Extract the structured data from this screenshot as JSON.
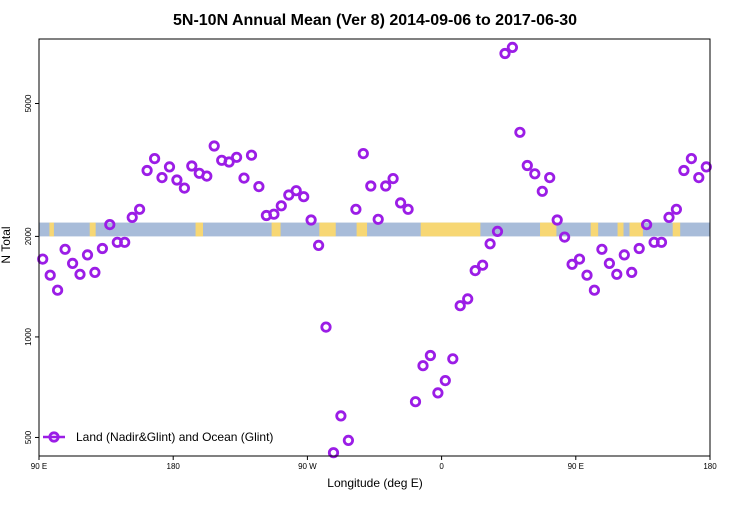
{
  "colors": {
    "marker": "#9b1de6",
    "band": "#a8bcd9",
    "land": "#f7d774",
    "frame": "#000000"
  },
  "chart_data": {
    "type": "scatter",
    "title": "5N-10N Annual Mean (Ver 8)   2014-09-06 to 2017-06-30",
    "xlabel": "Longitude (deg E)",
    "ylabel": "N Total",
    "x_scale": "linear",
    "y_scale": "log",
    "xlim": [
      90,
      540
    ],
    "ylim": [
      440,
      7800
    ],
    "x_ticks": [
      {
        "value": 90,
        "label": "90 E"
      },
      {
        "value": 180,
        "label": "180"
      },
      {
        "value": 270,
        "label": "90 W"
      },
      {
        "value": 360,
        "label": "0"
      },
      {
        "value": 450,
        "label": "90 E"
      },
      {
        "value": 540,
        "label": "180"
      }
    ],
    "y_ticks": [
      {
        "value": 500,
        "label": "500"
      },
      {
        "value": 1000,
        "label": "1000"
      },
      {
        "value": 2000,
        "label": "2000"
      },
      {
        "value": 5000,
        "label": "5000"
      }
    ],
    "band": {
      "y_min": 2000,
      "y_max": 2200
    },
    "land_segments": [
      [
        97,
        100
      ],
      [
        124,
        128
      ],
      [
        195,
        200
      ],
      [
        246,
        252
      ],
      [
        278,
        289
      ],
      [
        303,
        310
      ],
      [
        346,
        386
      ],
      [
        426,
        437
      ],
      [
        460,
        465
      ],
      [
        478,
        482
      ],
      [
        486,
        495
      ],
      [
        515,
        520
      ]
    ],
    "legend": {
      "label": "Land (Nadir&Glint) and Ocean (Glint)",
      "position": "bottom-left"
    },
    "series": [
      {
        "name": "Land (Nadir&Glint) and Ocean (Glint)",
        "x": [
          92.5,
          97.5,
          102.5,
          107.5,
          112.5,
          117.5,
          122.5,
          127.5,
          132.5,
          137.5,
          142.5,
          147.5,
          152.5,
          157.5,
          162.5,
          167.5,
          172.5,
          177.5,
          182.5,
          187.5,
          192.5,
          197.5,
          202.5,
          207.5,
          212.5,
          217.5,
          222.5,
          227.5,
          232.5,
          237.5,
          242.5,
          247.5,
          252.5,
          257.5,
          262.5,
          267.5,
          272.5,
          277.5,
          282.5,
          287.5,
          292.5,
          297.5,
          302.5,
          307.5,
          312.5,
          317.5,
          322.5,
          327.5,
          332.5,
          337.5,
          342.5,
          347.5,
          352.5,
          357.5,
          362.5,
          367.5,
          372.5,
          377.5,
          382.5,
          387.5,
          392.5,
          397.5,
          402.5,
          407.5,
          412.5,
          417.5,
          422.5,
          427.5,
          432.5,
          437.5,
          442.5,
          447.5,
          452.5,
          457.5,
          462.5,
          467.5,
          472.5,
          477.5,
          482.5,
          487.5,
          492.5,
          497.5,
          502.5,
          507.5,
          512.5,
          517.5,
          522.5,
          527.5,
          532.5,
          537.5
        ],
        "y": [
          1710,
          1530,
          1380,
          1830,
          1660,
          1540,
          1760,
          1560,
          1840,
          2170,
          1920,
          1920,
          2280,
          2410,
          3150,
          3420,
          3000,
          3230,
          2950,
          2790,
          3250,
          3090,
          3030,
          3730,
          3380,
          3340,
          3450,
          2990,
          3500,
          2820,
          2310,
          2330,
          2470,
          2660,
          2740,
          2630,
          2240,
          1880,
          1070,
          450,
          580,
          490,
          2410,
          3540,
          2830,
          2250,
          2830,
          2980,
          2520,
          2410,
          640,
          820,
          880,
          680,
          740,
          860,
          1240,
          1300,
          1580,
          1640,
          1900,
          2070,
          7060,
          7360,
          4100,
          3260,
          3080,
          2730,
          3000,
          2240,
          1990,
          1650,
          1710,
          1530,
          1380,
          1830,
          1660,
          1540,
          1760,
          1560,
          1840,
          2170,
          1920,
          1920,
          2280,
          2410,
          3150,
          3420,
          3000,
          3230
        ]
      }
    ]
  }
}
